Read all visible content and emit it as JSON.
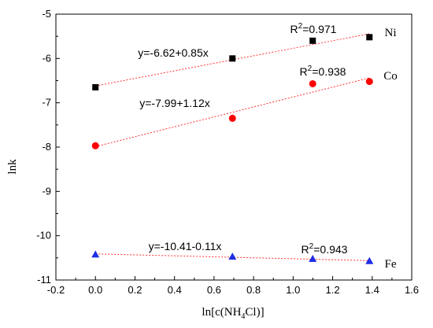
{
  "chart_data": {
    "type": "scatter",
    "xlabel_main": "ln[c(NH",
    "xlabel_sub": "4",
    "xlabel_end": "Cl)]",
    "ylabel": "lnk",
    "xlim": [
      -0.2,
      1.6
    ],
    "ylim": [
      -11,
      -5
    ],
    "xticks": [
      "-0.2",
      "0.0",
      "0.2",
      "0.4",
      "0.6",
      "0.8",
      "1.0",
      "1.2",
      "1.4",
      "1.6"
    ],
    "yticks": [
      "-5",
      "-6",
      "-7",
      "-8",
      "-9",
      "-10",
      "-11"
    ],
    "grid": false,
    "series": [
      {
        "name": "Ni",
        "marker": "square",
        "color": "#000000",
        "fit_color": "#ff3333",
        "x": [
          0.0,
          0.693,
          1.099,
          1.386
        ],
        "y": [
          -6.65,
          -6.0,
          -5.6,
          -5.52
        ],
        "fit": {
          "intercept": -6.62,
          "slope": 0.85
        },
        "equation": "y=-6.62+0.85x",
        "r2_prefix": "R",
        "r2_sup": "2",
        "r2_value": "=0.971"
      },
      {
        "name": "Co",
        "marker": "circle",
        "color": "#ff0000",
        "fit_color": "#ff3333",
        "x": [
          0.0,
          0.693,
          1.099,
          1.386
        ],
        "y": [
          -7.97,
          -7.35,
          -6.57,
          -6.52
        ],
        "fit": {
          "intercept": -7.99,
          "slope": 1.12
        },
        "equation": "y=-7.99+1.12x",
        "r2_prefix": "R",
        "r2_sup": "2",
        "r2_value": "=0.938"
      },
      {
        "name": "Fe",
        "marker": "triangle",
        "color": "#1f2ee6",
        "fit_color": "#ff3333",
        "x": [
          0.0,
          0.693,
          1.099,
          1.386
        ],
        "y": [
          -10.42,
          -10.47,
          -10.52,
          -10.57
        ],
        "fit": {
          "intercept": -10.41,
          "slope": -0.11
        },
        "equation": "y=-10.41-0.11x",
        "r2_prefix": "R",
        "r2_sup": "2",
        "r2_value": "=0.943"
      }
    ]
  }
}
